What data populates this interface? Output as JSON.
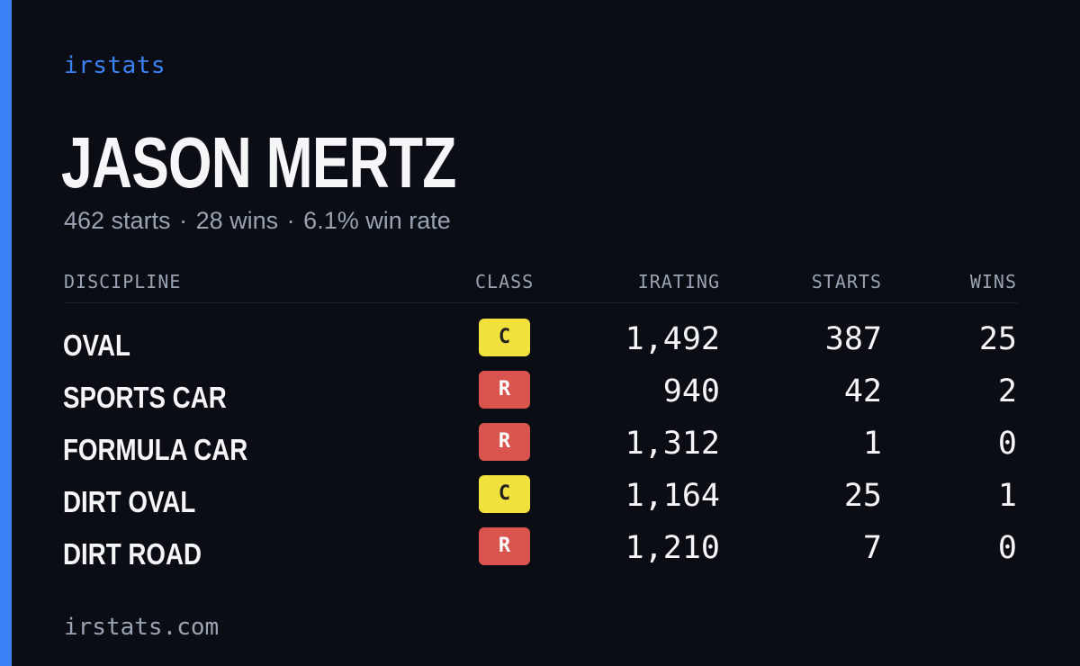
{
  "brand": "irstats",
  "profile": {
    "name": "JASON MERTZ",
    "starts_text": "462 starts",
    "wins_text": "28 wins",
    "win_rate_text": "6.1% win rate",
    "separator": "·"
  },
  "table": {
    "headers": {
      "discipline": "DISCIPLINE",
      "class": "CLASS",
      "irating": "IRATING",
      "starts": "STARTS",
      "wins": "WINS"
    },
    "rows": [
      {
        "discipline": "OVAL",
        "class": "C",
        "irating": "1,492",
        "starts": "387",
        "wins": "25"
      },
      {
        "discipline": "SPORTS CAR",
        "class": "R",
        "irating": "940",
        "starts": "42",
        "wins": "2"
      },
      {
        "discipline": "FORMULA CAR",
        "class": "R",
        "irating": "1,312",
        "starts": "1",
        "wins": "0"
      },
      {
        "discipline": "DIRT OVAL",
        "class": "C",
        "irating": "1,164",
        "starts": "25",
        "wins": "1"
      },
      {
        "discipline": "DIRT ROAD",
        "class": "R",
        "irating": "1,210",
        "starts": "7",
        "wins": "0"
      }
    ]
  },
  "footer": "irstats.com",
  "colors": {
    "background": "#0a0d14",
    "accent": "#3b82f6",
    "class_c": "#f2e03c",
    "class_r": "#d9534f",
    "muted_text": "#9aa3b2"
  }
}
